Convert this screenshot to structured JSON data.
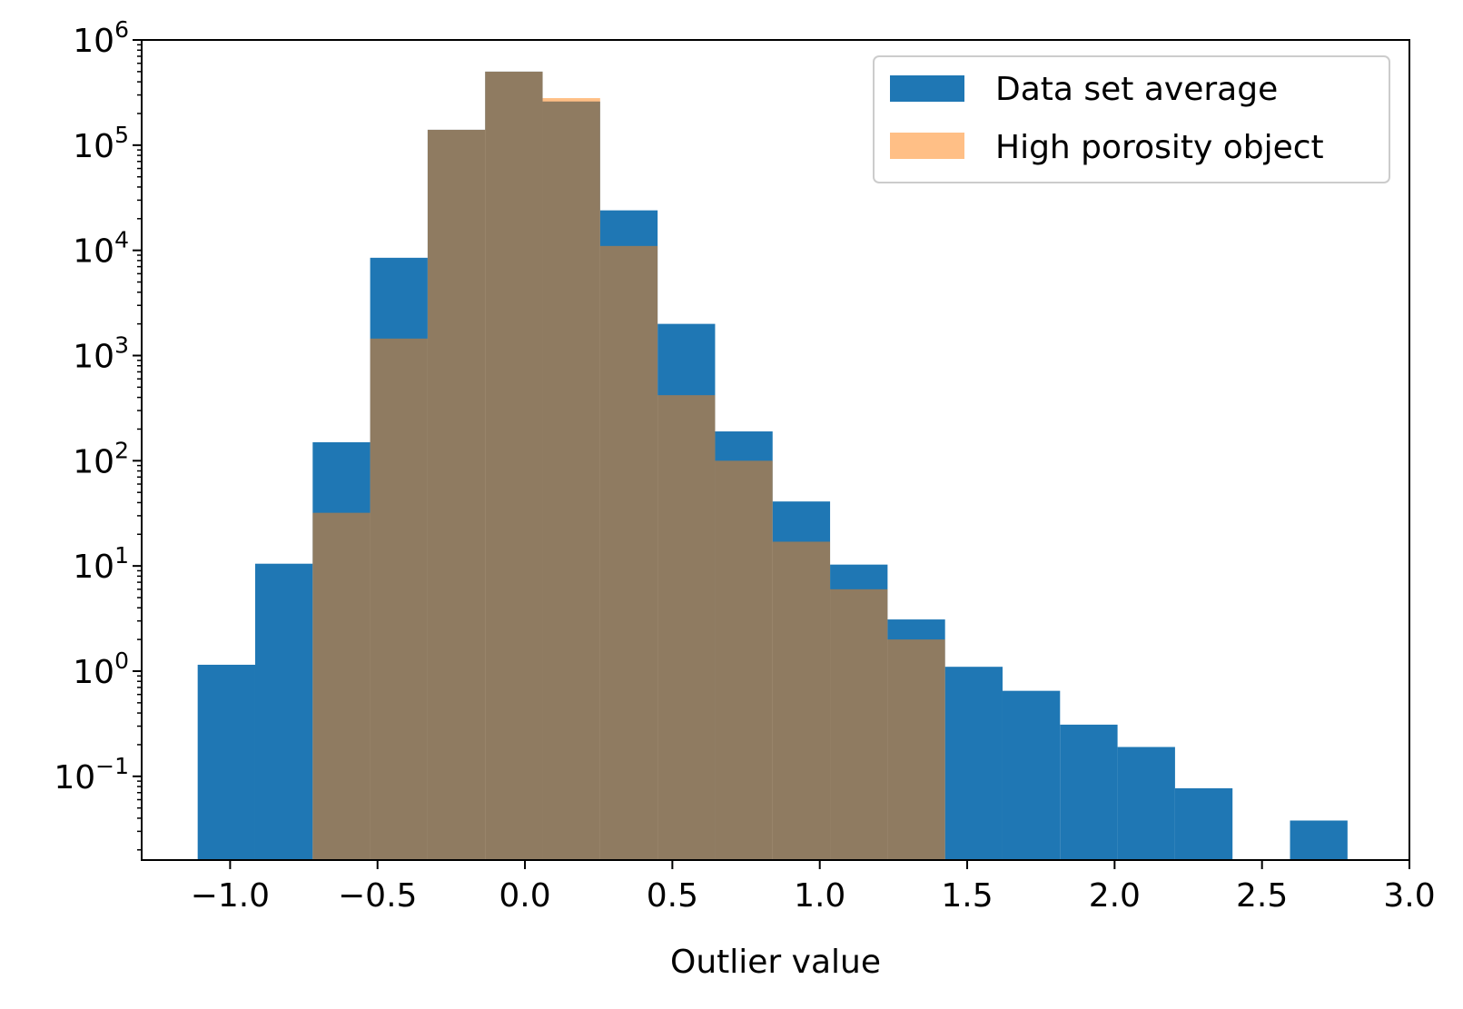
{
  "chart_data": {
    "type": "bar",
    "xlabel": "Outlier value",
    "ylabel": "",
    "title": "",
    "xlim": [
      -1.3,
      3.0
    ],
    "ylim": [
      0.016,
      1000000
    ],
    "yscale": "log",
    "grid": false,
    "legend_position": "top-right",
    "bin_edges": [
      -1.11,
      -0.915,
      -0.72,
      -0.525,
      -0.33,
      -0.135,
      0.06,
      0.255,
      0.45,
      0.645,
      0.84,
      1.035,
      1.23,
      1.425,
      1.62,
      1.815,
      2.01,
      2.205,
      2.4,
      2.595,
      2.79
    ],
    "x_ticks": [
      -1.0,
      -0.5,
      0.0,
      0.5,
      1.0,
      1.5,
      2.0,
      2.5,
      3.0
    ],
    "x_tick_labels": [
      "−1.0",
      "−0.5",
      "0.0",
      "0.5",
      "1.0",
      "1.5",
      "2.0",
      "2.5",
      "3.0"
    ],
    "y_ticks": [
      {
        "value": 0.1,
        "base": "10",
        "exp": "−1"
      },
      {
        "value": 1,
        "base": "10",
        "exp": "0"
      },
      {
        "value": 10,
        "base": "10",
        "exp": "1"
      },
      {
        "value": 100,
        "base": "10",
        "exp": "2"
      },
      {
        "value": 1000,
        "base": "10",
        "exp": "3"
      },
      {
        "value": 10000,
        "base": "10",
        "exp": "4"
      },
      {
        "value": 100000,
        "base": "10",
        "exp": "5"
      },
      {
        "value": 1000000,
        "base": "10",
        "exp": "6"
      }
    ],
    "series": [
      {
        "name": "Data set average",
        "color": "#1f77b4",
        "opacity": 1.0,
        "values": [
          1.15,
          10.5,
          150,
          8500,
          140000,
          500000,
          260000,
          24000,
          2000,
          190,
          41,
          10.3,
          3.1,
          1.1,
          0.65,
          0.31,
          0.19,
          0.077,
          0,
          0.038
        ]
      },
      {
        "name": "High porosity object",
        "color": "#ff7f0e",
        "opacity": 0.5,
        "values": [
          0,
          0,
          32,
          1450,
          140000,
          500000,
          280000,
          11000,
          420,
          100,
          17,
          6,
          2,
          0,
          0,
          0,
          0,
          0,
          0,
          0
        ]
      }
    ]
  }
}
